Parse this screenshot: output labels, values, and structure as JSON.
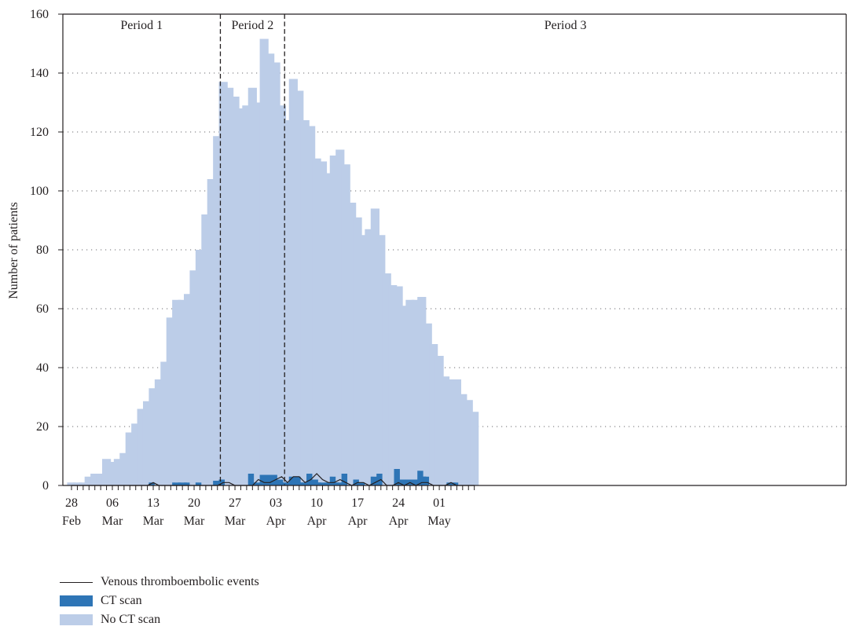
{
  "chart_data": {
    "type": "bar",
    "stacked": true,
    "ylabel": "Number of patients",
    "ylim": [
      0,
      160
    ],
    "yticks": [
      "0",
      "20",
      "40",
      "60",
      "80",
      "100",
      "120",
      "140",
      "160"
    ],
    "grid": "horizontal dotted",
    "start_date": "28 Feb",
    "xtick_labels": [
      {
        "day": "28",
        "month": "Feb",
        "index": 0
      },
      {
        "day": "06",
        "month": "Mar",
        "index": 7
      },
      {
        "day": "13",
        "month": "Mar",
        "index": 14
      },
      {
        "day": "20",
        "month": "Mar",
        "index": 21
      },
      {
        "day": "27",
        "month": "Mar",
        "index": 28
      },
      {
        "day": "03",
        "month": "Apr",
        "index": 35
      },
      {
        "day": "10",
        "month": "Apr",
        "index": 42
      },
      {
        "day": "17",
        "month": "Apr",
        "index": 49
      },
      {
        "day": "24",
        "month": "Apr",
        "index": 56
      },
      {
        "day": "01",
        "month": "May",
        "index": 63
      }
    ],
    "periods": [
      {
        "label": "Period 1",
        "start_index": 0,
        "end_index": 26
      },
      {
        "label": "Period 2",
        "start_index": 26,
        "end_index": 37
      },
      {
        "label": "Period 3",
        "start_index": 37,
        "end_index": 70
      }
    ],
    "series": [
      {
        "name": "No CT scan",
        "color": "#bccde8",
        "values": [
          1,
          1,
          1,
          3,
          4,
          4,
          9,
          8,
          9,
          11,
          18,
          21,
          26,
          28.6,
          32,
          36,
          42,
          57,
          62,
          62,
          64,
          73,
          79,
          92,
          104,
          117,
          135,
          135,
          132,
          128,
          129,
          131,
          129,
          148,
          143,
          140,
          127,
          123,
          135,
          131,
          123,
          118,
          109,
          109,
          105,
          109,
          113,
          105,
          96,
          89,
          84,
          87,
          91,
          81,
          72,
          68,
          62,
          59,
          61,
          61,
          59,
          52,
          48,
          44,
          37,
          35,
          35,
          31,
          29,
          25
        ]
      },
      {
        "name": "CT scan",
        "color": "#2e75b6",
        "values": [
          0,
          0,
          0,
          0,
          0,
          0,
          0,
          0,
          0,
          0,
          0,
          0,
          0,
          0,
          1,
          0,
          0,
          0,
          1,
          1,
          1,
          0,
          1,
          0,
          0,
          1.6,
          2,
          0,
          0,
          0,
          0,
          4,
          1,
          3.6,
          3.6,
          3.6,
          2,
          1,
          3,
          3,
          1,
          4,
          2,
          1,
          1,
          3,
          1,
          4,
          0,
          2,
          1,
          0,
          3,
          4,
          0,
          0,
          5.6,
          2,
          2,
          2,
          5,
          3,
          0,
          0,
          0,
          1,
          1,
          0,
          0,
          0
        ]
      },
      {
        "name": "Venous thromboembolic events",
        "color": "#231f20",
        "type": "line",
        "values": [
          0,
          0,
          0,
          0,
          0,
          0,
          0,
          0,
          0,
          0,
          0,
          0,
          0,
          0,
          1,
          0,
          0,
          0,
          0,
          0,
          0,
          0,
          0,
          0,
          0,
          0,
          1,
          1,
          0,
          0,
          0,
          0,
          2,
          1,
          1,
          2,
          3,
          1,
          3,
          3,
          1,
          2,
          4,
          2,
          1,
          1,
          2,
          1,
          0,
          1,
          1,
          0,
          1,
          2,
          0,
          0,
          1,
          0,
          1,
          0,
          1,
          1,
          0,
          0,
          0,
          1,
          0,
          0,
          0,
          0
        ]
      }
    ],
    "legend": [
      {
        "label": "Venous thromboembolic events",
        "kind": "line",
        "color": "#231f20"
      },
      {
        "label": "CT scan",
        "kind": "box",
        "color": "#2e75b6"
      },
      {
        "label": "No CT scan",
        "kind": "box",
        "color": "#bccde8"
      }
    ]
  }
}
